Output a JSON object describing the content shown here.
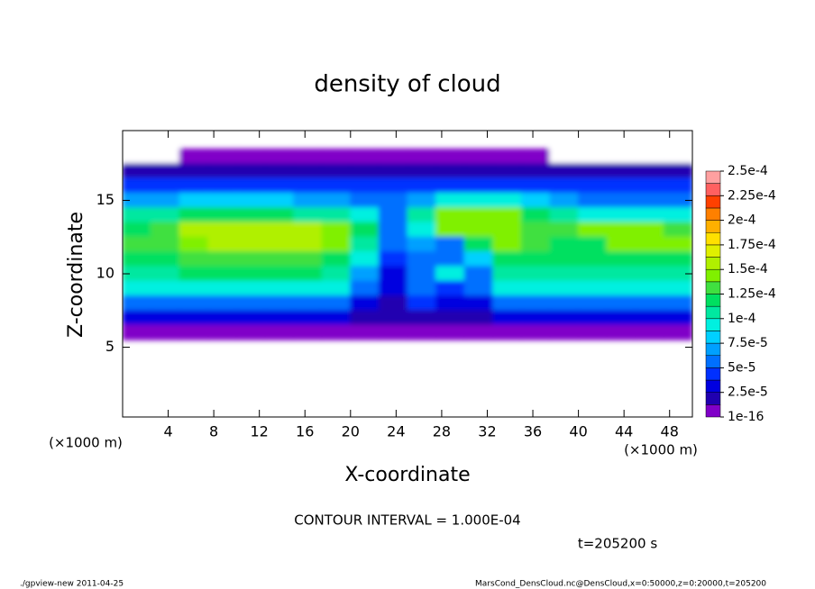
{
  "chart_data": {
    "type": "heatmap",
    "title": "density of cloud",
    "xlabel": "X-coordinate",
    "ylabel": "Z-coordinate",
    "x_unit": "(×1000 m)",
    "y_unit": "(×1000 m)",
    "contour_note": "CONTOUR INTERVAL = 1.000E-04",
    "time_note": "t=205200 s",
    "footer_left": "./gpview-new  2011-04-25",
    "footer_right": "MarsCond_DensCloud.nc@DensCloud,x=0:50000,z=0:20000,t=205200",
    "xlim": [
      0,
      50
    ],
    "ylim": [
      0.25,
      19.75
    ],
    "xticks": [
      4,
      8,
      12,
      16,
      20,
      24,
      28,
      32,
      36,
      40,
      44,
      48
    ],
    "yticks": [
      5,
      10,
      15
    ],
    "x": [
      1.25,
      3.75,
      6.25,
      8.75,
      11.25,
      13.75,
      16.25,
      18.75,
      21.25,
      23.75,
      26.25,
      28.75,
      31.25,
      33.75,
      36.25,
      38.75,
      41.25,
      43.75,
      46.25,
      48.75
    ],
    "z": [
      18,
      17,
      16,
      15,
      14,
      13,
      12,
      11,
      10,
      9,
      8,
      7,
      6
    ],
    "values": [
      [
        0,
        0,
        1e-06,
        1e-06,
        1e-06,
        1e-06,
        1e-06,
        1e-06,
        1e-06,
        1e-06,
        1e-06,
        1e-06,
        1e-06,
        1e-06,
        1e-06,
        0,
        0,
        0,
        0,
        0
      ],
      [
        2e-05,
        2e-05,
        2e-05,
        2e-05,
        2e-05,
        2e-05,
        2e-05,
        2e-05,
        2e-05,
        2e-05,
        2e-05,
        2e-05,
        2e-05,
        2e-05,
        2e-05,
        2e-05,
        1.5e-05,
        1.5e-05,
        1.5e-05,
        1.5e-05
      ],
      [
        4e-05,
        4e-05,
        4e-05,
        4e-05,
        4e-05,
        4e-05,
        4e-05,
        4e-05,
        4e-05,
        4e-05,
        4e-05,
        4.5e-05,
        4.5e-05,
        4.5e-05,
        4e-05,
        4e-05,
        4e-05,
        4e-05,
        4e-05,
        4e-05
      ],
      [
        7e-05,
        7e-05,
        8e-05,
        8e-05,
        8e-05,
        8e-05,
        7e-05,
        7e-05,
        6e-05,
        5e-05,
        7e-05,
        9e-05,
        9e-05,
        9e-05,
        8e-05,
        7e-05,
        6e-05,
        6e-05,
        6e-05,
        6e-05
      ],
      [
        0.00011,
        0.00011,
        0.00012,
        0.00012,
        0.00012,
        0.00012,
        0.00011,
        0.0001,
        9e-05,
        6e-05,
        0.0001,
        0.00014,
        0.00014,
        0.00014,
        0.00012,
        0.0001,
        9e-05,
        9e-05,
        9e-05,
        9e-05
      ],
      [
        0.00012,
        0.00013,
        0.00015,
        0.00016,
        0.00016,
        0.00016,
        0.00015,
        0.00014,
        0.00012,
        5e-05,
        9e-05,
        0.00014,
        0.00014,
        0.00014,
        0.00013,
        0.00013,
        0.00014,
        0.00014,
        0.00014,
        0.00013
      ],
      [
        0.00013,
        0.00013,
        0.00014,
        0.00015,
        0.00015,
        0.00015,
        0.00015,
        0.00014,
        0.00011,
        5e-05,
        7e-05,
        6e-05,
        0.00012,
        0.00014,
        0.00013,
        0.00012,
        0.00012,
        0.00014,
        0.00014,
        0.00014
      ],
      [
        0.00012,
        0.00012,
        0.00013,
        0.00013,
        0.00013,
        0.00013,
        0.00013,
        0.00012,
        9e-05,
        4e-05,
        6e-05,
        5e-05,
        8e-05,
        0.00012,
        0.00012,
        0.00012,
        0.00012,
        0.00012,
        0.00012,
        0.00012
      ],
      [
        0.00011,
        0.00011,
        0.00012,
        0.00012,
        0.00012,
        0.00012,
        0.00012,
        0.00011,
        7e-05,
        3e-05,
        5e-05,
        9e-05,
        6e-05,
        0.00011,
        0.00011,
        0.00011,
        0.00011,
        0.00011,
        0.00011,
        0.00011
      ],
      [
        9e-05,
        9e-05,
        9e-05,
        9e-05,
        9e-05,
        9e-05,
        9e-05,
        9e-05,
        5e-05,
        3e-05,
        6e-05,
        4e-05,
        5e-05,
        9e-05,
        9e-05,
        9e-05,
        9e-05,
        9e-05,
        9e-05,
        9e-05
      ],
      [
        6e-05,
        6e-05,
        6e-05,
        6e-05,
        6e-05,
        6e-05,
        6e-05,
        6e-05,
        3e-05,
        2e-05,
        4e-05,
        3e-05,
        3e-05,
        6e-05,
        6e-05,
        6e-05,
        6e-05,
        6e-05,
        6e-05,
        6e-05
      ],
      [
        3.5e-05,
        3.5e-05,
        3.5e-05,
        3.5e-05,
        3.5e-05,
        3.5e-05,
        3.5e-05,
        3.5e-05,
        1.5e-05,
        2e-05,
        2e-05,
        2e-05,
        2e-05,
        3.5e-05,
        3.5e-05,
        3.5e-05,
        3.5e-05,
        3.5e-05,
        3.5e-05,
        3.5e-05
      ],
      [
        1e-06,
        1e-06,
        1e-06,
        1e-06,
        1e-06,
        1e-06,
        1e-06,
        1e-06,
        1e-06,
        1e-06,
        1e-06,
        1e-06,
        1e-06,
        1e-06,
        1e-06,
        1e-06,
        1e-06,
        1e-06,
        1e-06,
        1e-06
      ]
    ],
    "colorbar_ticks": [
      {
        "value": 1e-16,
        "label": "1e-16"
      },
      {
        "value": 2.5e-05,
        "label": "2.5e-5"
      },
      {
        "value": 5e-05,
        "label": "5e-5"
      },
      {
        "value": 7.5e-05,
        "label": "7.5e-5"
      },
      {
        "value": 0.0001,
        "label": "1e-4"
      },
      {
        "value": 0.000125,
        "label": "1.25e-4"
      },
      {
        "value": 0.00015,
        "label": "1.5e-4"
      },
      {
        "value": 0.000175,
        "label": "1.75e-4"
      },
      {
        "value": 0.0002,
        "label": "2e-4"
      },
      {
        "value": 0.000225,
        "label": "2.25e-4"
      },
      {
        "value": 0.00025,
        "label": "2.5e-4"
      }
    ],
    "colors": [
      "#8000c8",
      "#2000b0",
      "#0000e0",
      "#0030ff",
      "#0070ff",
      "#00a0ff",
      "#00d0ff",
      "#00f0e0",
      "#00e8a0",
      "#00e060",
      "#40e040",
      "#80f000",
      "#b0f000",
      "#e0f000",
      "#ffe000",
      "#ffb000",
      "#ff8000",
      "#ff4000",
      "#ff6060",
      "#ffa0a0"
    ]
  }
}
